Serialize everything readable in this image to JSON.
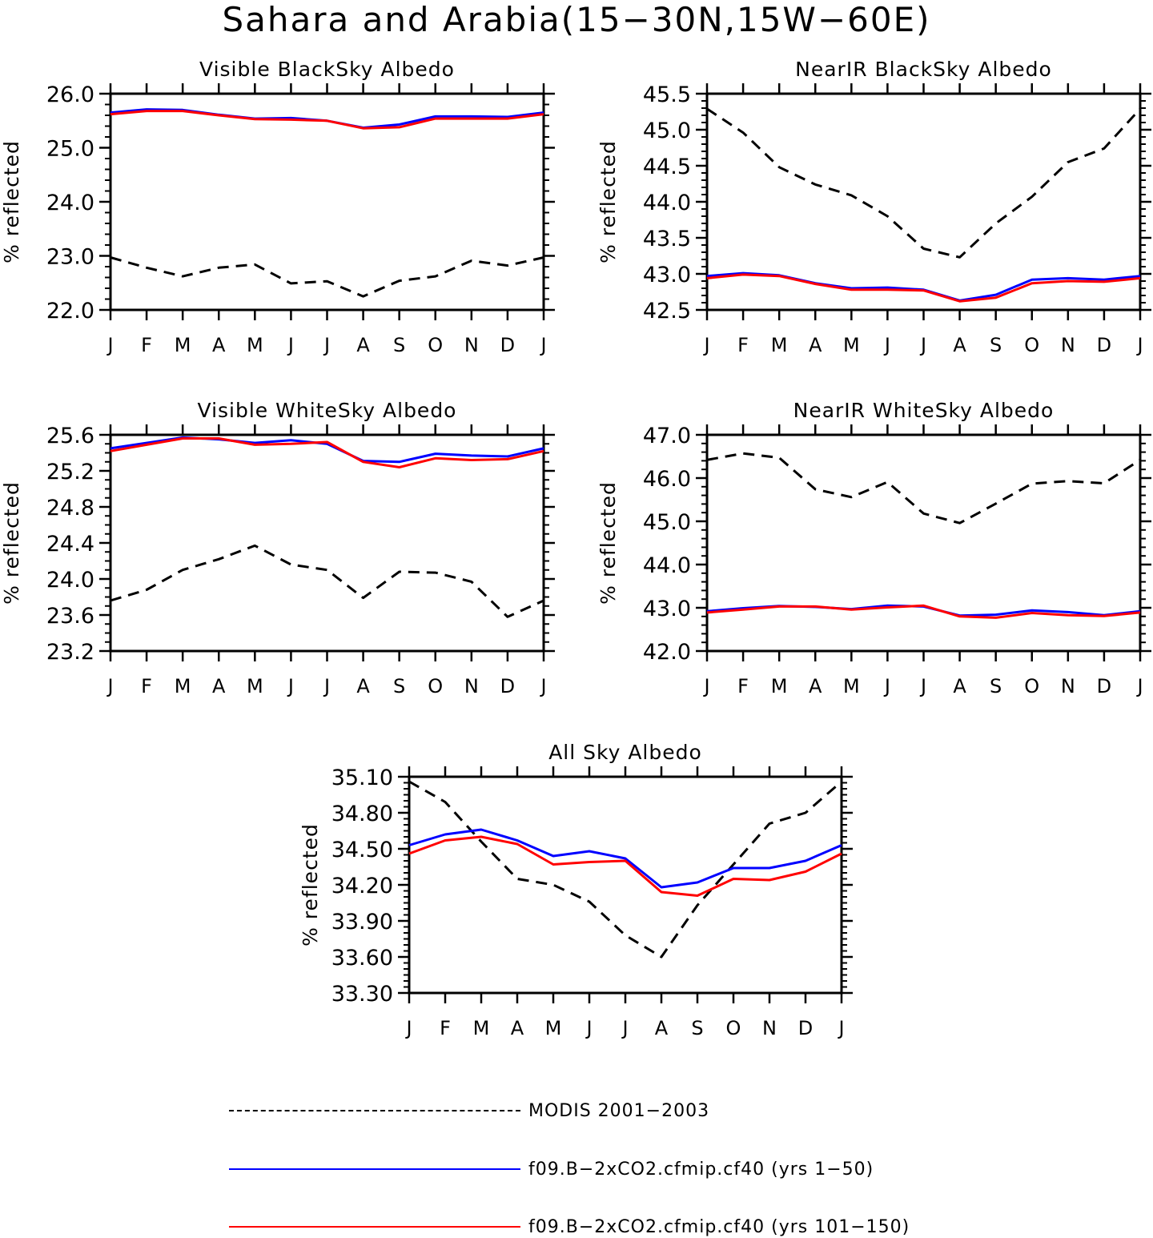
{
  "figure_title": "Sahara and Arabia(15−30N,15W−60E)",
  "legend": {
    "entries": [
      {
        "label": "MODIS 2001−2003",
        "color": "#000000",
        "style": "dashed"
      },
      {
        "label": "f09.B−2xCO2.cfmip.cf40 (yrs 1−50)",
        "color": "#0000ff",
        "style": "solid"
      },
      {
        "label": "f09.B−2xCO2.cfmip.cf40 (yrs 101−150)",
        "color": "#ff0000",
        "style": "solid"
      }
    ]
  },
  "chart_data": [
    {
      "type": "line",
      "title": "Visible BlackSky Albedo",
      "ylabel": "% reflected",
      "x": [
        "J",
        "F",
        "M",
        "A",
        "M",
        "J",
        "J",
        "A",
        "S",
        "O",
        "N",
        "D",
        "J"
      ],
      "ylim": [
        22.0,
        26.0
      ],
      "yticks": [
        "22.0",
        "23.0",
        "24.0",
        "25.0",
        "26.0"
      ],
      "y_minor_step": 0.2,
      "series": [
        {
          "name": "MODIS 2001−2003",
          "color": "#000000",
          "dash": true,
          "values": [
            22.97,
            22.78,
            22.62,
            22.78,
            22.84,
            22.49,
            22.53,
            22.25,
            22.54,
            22.62,
            22.91,
            22.82,
            22.97
          ]
        },
        {
          "name": "f09.B−2xCO2.cfmip.cf40 (yrs 1−50)",
          "color": "#0000ff",
          "values": [
            25.65,
            25.71,
            25.7,
            25.61,
            25.54,
            25.55,
            25.5,
            25.37,
            25.43,
            25.58,
            25.58,
            25.57,
            25.65
          ]
        },
        {
          "name": "f09.B−2xCO2.cfmip.cf40 (yrs 101−150)",
          "color": "#ff0000",
          "values": [
            25.62,
            25.68,
            25.68,
            25.6,
            25.53,
            25.52,
            25.5,
            25.36,
            25.38,
            25.54,
            25.54,
            25.54,
            25.62
          ]
        }
      ]
    },
    {
      "type": "line",
      "title": "NearIR BlackSky Albedo",
      "ylabel": "% reflected",
      "x": [
        "J",
        "F",
        "M",
        "A",
        "M",
        "J",
        "J",
        "A",
        "S",
        "O",
        "N",
        "D",
        "J"
      ],
      "ylim": [
        42.5,
        45.5
      ],
      "yticks": [
        "42.5",
        "43.0",
        "43.5",
        "44.0",
        "44.5",
        "45.0",
        "45.5"
      ],
      "y_minor_step": 0.1,
      "series": [
        {
          "name": "MODIS 2001−2003",
          "color": "#000000",
          "dash": true,
          "values": [
            45.29,
            44.96,
            44.48,
            44.24,
            44.09,
            43.8,
            43.35,
            43.23,
            43.7,
            44.07,
            44.55,
            44.74,
            45.29
          ]
        },
        {
          "name": "f09.B−2xCO2.cfmip.cf40 (yrs 1−50)",
          "color": "#0000ff",
          "values": [
            42.97,
            43.01,
            42.98,
            42.87,
            42.8,
            42.81,
            42.78,
            42.63,
            42.71,
            42.92,
            42.94,
            42.92,
            42.97
          ]
        },
        {
          "name": "f09.B−2xCO2.cfmip.cf40 (yrs 101−150)",
          "color": "#ff0000",
          "values": [
            42.94,
            42.99,
            42.97,
            42.86,
            42.78,
            42.78,
            42.77,
            42.62,
            42.67,
            42.87,
            42.9,
            42.89,
            42.94
          ]
        }
      ]
    },
    {
      "type": "line",
      "title": "Visible WhiteSky Albedo",
      "ylabel": "% reflected",
      "x": [
        "J",
        "F",
        "M",
        "A",
        "M",
        "J",
        "J",
        "A",
        "S",
        "O",
        "N",
        "D",
        "J"
      ],
      "ylim": [
        23.2,
        25.6
      ],
      "yticks": [
        "23.2",
        "23.6",
        "24.0",
        "24.4",
        "24.8",
        "25.2",
        "25.6"
      ],
      "y_minor_step": 0.1,
      "series": [
        {
          "name": "MODIS 2001−2003",
          "color": "#000000",
          "dash": true,
          "values": [
            23.76,
            23.88,
            24.1,
            24.22,
            24.37,
            24.16,
            24.1,
            23.79,
            24.08,
            24.07,
            23.97,
            23.58,
            23.76
          ]
        },
        {
          "name": "f09.B−2xCO2.cfmip.cf40 (yrs 1−50)",
          "color": "#0000ff",
          "values": [
            25.45,
            25.51,
            25.57,
            25.55,
            25.51,
            25.54,
            25.5,
            25.31,
            25.3,
            25.39,
            25.37,
            25.36,
            25.45
          ]
        },
        {
          "name": "f09.B−2xCO2.cfmip.cf40 (yrs 101−150)",
          "color": "#ff0000",
          "values": [
            25.42,
            25.49,
            25.56,
            25.56,
            25.49,
            25.5,
            25.52,
            25.3,
            25.24,
            25.34,
            25.32,
            25.33,
            25.42
          ]
        }
      ]
    },
    {
      "type": "line",
      "title": "NearIR WhiteSky Albedo",
      "ylabel": "% reflected",
      "x": [
        "J",
        "F",
        "M",
        "A",
        "M",
        "J",
        "J",
        "A",
        "S",
        "O",
        "N",
        "D",
        "J"
      ],
      "ylim": [
        42.0,
        47.0
      ],
      "yticks": [
        "42.0",
        "43.0",
        "44.0",
        "45.0",
        "46.0",
        "47.0"
      ],
      "y_minor_step": 0.2,
      "series": [
        {
          "name": "MODIS 2001−2003",
          "color": "#000000",
          "dash": true,
          "values": [
            46.42,
            46.57,
            46.47,
            45.74,
            45.56,
            45.91,
            45.18,
            44.96,
            45.41,
            45.87,
            45.93,
            45.88,
            46.42
          ]
        },
        {
          "name": "f09.B−2xCO2.cfmip.cf40 (yrs 1−50)",
          "color": "#0000ff",
          "values": [
            42.92,
            42.99,
            43.04,
            43.02,
            42.97,
            43.05,
            43.03,
            42.82,
            42.84,
            42.94,
            42.9,
            42.83,
            42.92
          ]
        },
        {
          "name": "f09.B−2xCO2.cfmip.cf40 (yrs 101−150)",
          "color": "#ff0000",
          "values": [
            42.89,
            42.96,
            43.03,
            43.03,
            42.96,
            43.01,
            43.05,
            42.8,
            42.77,
            42.88,
            42.83,
            42.81,
            42.89
          ]
        }
      ]
    },
    {
      "type": "line",
      "title": "All Sky Albedo",
      "ylabel": "% reflected",
      "x": [
        "J",
        "F",
        "M",
        "A",
        "M",
        "J",
        "J",
        "A",
        "S",
        "O",
        "N",
        "D",
        "J"
      ],
      "ylim": [
        33.3,
        35.1
      ],
      "yticks": [
        "33.30",
        "33.60",
        "33.90",
        "34.20",
        "34.50",
        "34.80",
        "35.10"
      ],
      "y_minor_step": 0.05,
      "series": [
        {
          "name": "MODIS 2001−2003",
          "color": "#000000",
          "dash": true,
          "values": [
            35.06,
            34.89,
            34.56,
            34.25,
            34.2,
            34.06,
            33.78,
            33.6,
            34.03,
            34.37,
            34.71,
            34.8,
            35.06
          ]
        },
        {
          "name": "f09.B−2xCO2.cfmip.cf40 (yrs 1−50)",
          "color": "#0000ff",
          "values": [
            34.53,
            34.62,
            34.66,
            34.57,
            34.44,
            34.48,
            34.42,
            34.18,
            34.22,
            34.34,
            34.34,
            34.4,
            34.53
          ]
        },
        {
          "name": "f09.B−2xCO2.cfmip.cf40 (yrs 101−150)",
          "color": "#ff0000",
          "values": [
            34.46,
            34.57,
            34.6,
            34.54,
            34.37,
            34.39,
            34.4,
            34.14,
            34.11,
            34.25,
            34.24,
            34.31,
            34.46
          ]
        }
      ]
    }
  ]
}
